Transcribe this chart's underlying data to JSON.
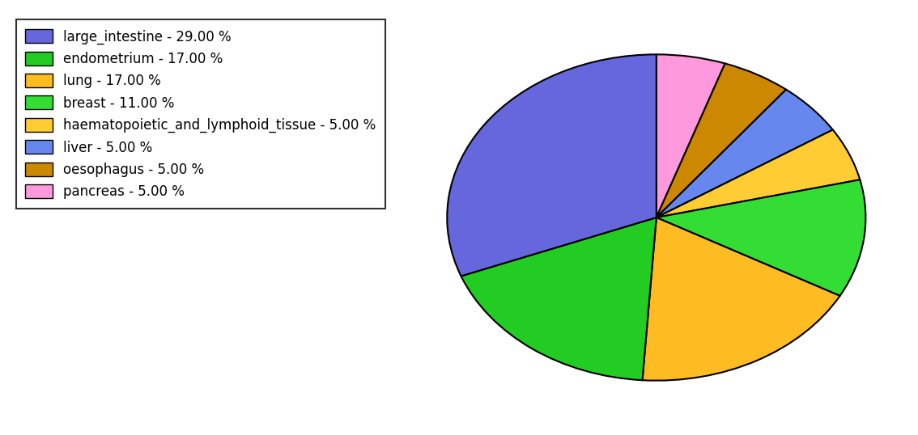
{
  "labels": [
    "pancreas",
    "oesophagus",
    "liver",
    "haematopoietic_and_lymphoid_tissue",
    "breast",
    "lung",
    "endometrium",
    "large_intestine"
  ],
  "values": [
    5,
    5,
    5,
    5,
    11,
    17,
    17,
    29
  ],
  "colors": [
    "#ff99dd",
    "#cc8800",
    "#6688ee",
    "#ffcc33",
    "#33dd33",
    "#ffbb22",
    "#22cc22",
    "#6666dd"
  ],
  "legend_order_labels": [
    "large_intestine - 29.00 %",
    "endometrium - 17.00 %",
    "lung - 17.00 %",
    "breast - 11.00 %",
    "haematopoietic_and_lymphoid_tissue - 5.00 %",
    "liver - 5.00 %",
    "oesophagus - 5.00 %",
    "pancreas - 5.00 %"
  ],
  "legend_order_colors": [
    "#6666dd",
    "#22cc22",
    "#ffbb22",
    "#33dd33",
    "#ffcc33",
    "#6688ee",
    "#cc8800",
    "#ff99dd"
  ],
  "startangle": 90,
  "figsize": [
    11.34,
    5.38
  ],
  "dpi": 100
}
